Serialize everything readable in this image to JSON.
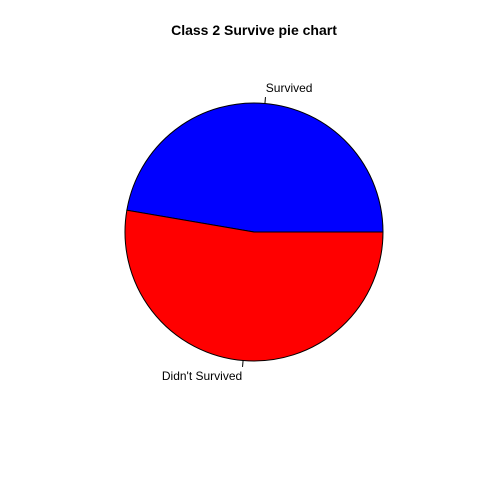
{
  "chart_data": {
    "type": "pie",
    "title": "Class 2 Survive pie chart",
    "categories": [
      "Survived",
      "Didn't Survived"
    ],
    "values": [
      47.3,
      52.7
    ],
    "colors": [
      "#0000ff",
      "#ff0000"
    ]
  }
}
